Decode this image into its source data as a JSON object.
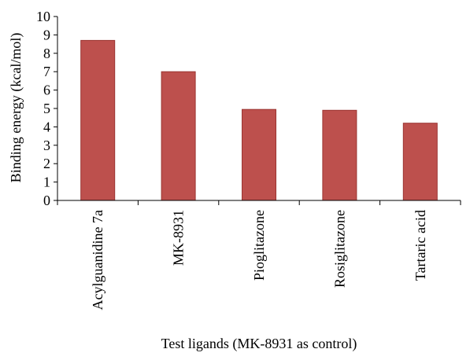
{
  "chart_data": {
    "type": "bar",
    "title": "",
    "xlabel": "Test ligands (MK-8931 as control)",
    "ylabel": "Binding energy (kcal/mol)",
    "ylim": [
      0,
      10
    ],
    "y_ticks": [
      "0",
      "1",
      "2",
      "3",
      "4",
      "5",
      "6",
      "7",
      "8",
      "9",
      "10"
    ],
    "categories": [
      "Acylguanidine 7a",
      "MK-8931",
      "Pioglitazone",
      "Rosiglitazone",
      "Tartaric acid"
    ],
    "values": [
      8.7,
      7.0,
      4.95,
      4.9,
      4.2
    ],
    "grid": false,
    "legend": "none",
    "bar_color": "#bd504d",
    "bar_edge_color": "#9b3532"
  }
}
